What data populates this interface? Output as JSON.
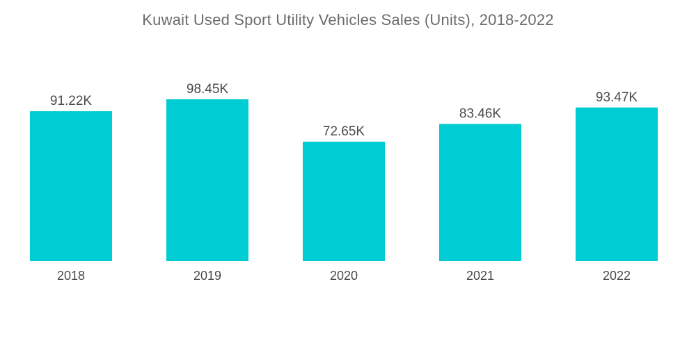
{
  "chart_data": {
    "type": "bar",
    "title": "Kuwait Used Sport Utility Vehicles Sales (Units), 2018-2022",
    "xlabel": "",
    "ylabel": "",
    "categories": [
      "2018",
      "2019",
      "2020",
      "2021",
      "2022"
    ],
    "values": [
      91.22,
      98.45,
      72.65,
      83.46,
      93.47
    ],
    "value_labels": [
      "91.22K",
      "98.45K",
      "72.65K",
      "83.46K",
      "93.47K"
    ],
    "ylim": [
      0,
      100
    ],
    "grid": false,
    "legend": "none",
    "bar_color": "#00ccd3"
  }
}
